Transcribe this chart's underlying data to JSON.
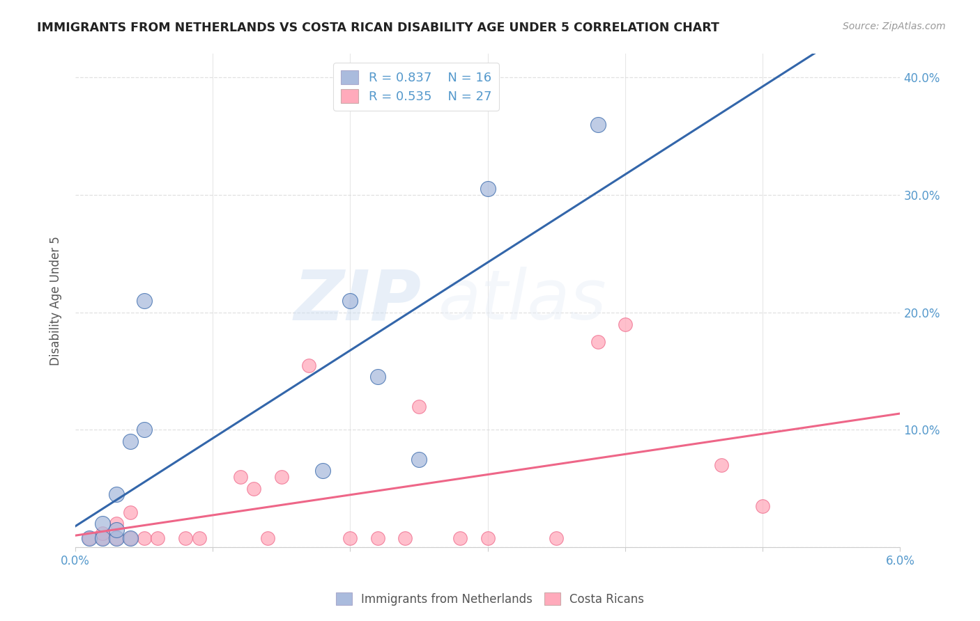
{
  "title": "IMMIGRANTS FROM NETHERLANDS VS COSTA RICAN DISABILITY AGE UNDER 5 CORRELATION CHART",
  "source": "Source: ZipAtlas.com",
  "ylabel": "Disability Age Under 5",
  "xlim": [
    0.0,
    0.06
  ],
  "ylim": [
    0.0,
    0.42
  ],
  "xticks": [
    0.0,
    0.01,
    0.02,
    0.03,
    0.04,
    0.05,
    0.06
  ],
  "xtick_labels": [
    "0.0%",
    "",
    "",
    "",
    "",
    "",
    "6.0%"
  ],
  "yticks": [
    0.0,
    0.1,
    0.2,
    0.3,
    0.4
  ],
  "ytick_labels": [
    "",
    "10.0%",
    "20.0%",
    "30.0%",
    "40.0%"
  ],
  "background_color": "#ffffff",
  "watermark_text": "ZIP",
  "watermark_text2": "atlas",
  "legend_R1": "R = 0.837",
  "legend_N1": "N = 16",
  "legend_R2": "R = 0.535",
  "legend_N2": "N = 27",
  "blue_color": "#AABBDD",
  "pink_color": "#FFAABB",
  "line_blue": "#3366AA",
  "line_pink": "#EE6688",
  "blue_scatter": [
    [
      0.001,
      0.008
    ],
    [
      0.002,
      0.008
    ],
    [
      0.002,
      0.02
    ],
    [
      0.003,
      0.008
    ],
    [
      0.003,
      0.015
    ],
    [
      0.003,
      0.045
    ],
    [
      0.004,
      0.008
    ],
    [
      0.004,
      0.09
    ],
    [
      0.005,
      0.1
    ],
    [
      0.005,
      0.21
    ],
    [
      0.018,
      0.065
    ],
    [
      0.02,
      0.21
    ],
    [
      0.022,
      0.145
    ],
    [
      0.025,
      0.075
    ],
    [
      0.03,
      0.305
    ],
    [
      0.038,
      0.36
    ]
  ],
  "pink_scatter": [
    [
      0.001,
      0.008
    ],
    [
      0.002,
      0.008
    ],
    [
      0.002,
      0.012
    ],
    [
      0.003,
      0.008
    ],
    [
      0.003,
      0.02
    ],
    [
      0.004,
      0.008
    ],
    [
      0.004,
      0.03
    ],
    [
      0.005,
      0.008
    ],
    [
      0.006,
      0.008
    ],
    [
      0.008,
      0.008
    ],
    [
      0.009,
      0.008
    ],
    [
      0.012,
      0.06
    ],
    [
      0.013,
      0.05
    ],
    [
      0.014,
      0.008
    ],
    [
      0.015,
      0.06
    ],
    [
      0.017,
      0.155
    ],
    [
      0.02,
      0.008
    ],
    [
      0.022,
      0.008
    ],
    [
      0.024,
      0.008
    ],
    [
      0.025,
      0.12
    ],
    [
      0.028,
      0.008
    ],
    [
      0.03,
      0.008
    ],
    [
      0.035,
      0.008
    ],
    [
      0.038,
      0.175
    ],
    [
      0.04,
      0.19
    ],
    [
      0.047,
      0.07
    ],
    [
      0.05,
      0.035
    ]
  ],
  "blue_scatter_size": 250,
  "pink_scatter_size": 200,
  "grid_color": "#DDDDDD",
  "tick_color": "#5599CC",
  "title_color": "#222222",
  "source_color": "#999999",
  "ylabel_color": "#555555"
}
